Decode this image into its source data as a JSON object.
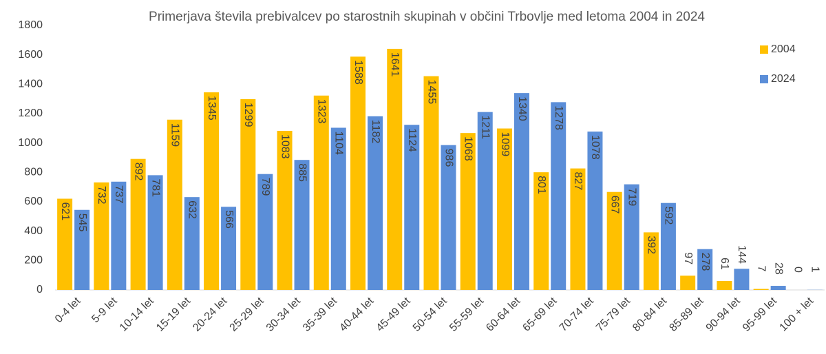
{
  "chart_data": {
    "type": "bar",
    "title": "Primerjava števila prebivalcev po starostnih skupinah v občini Trbovlje med letoma 2004 in 2024",
    "categories": [
      "0-4 let",
      "5-9 let",
      "10-14 let",
      "15-19 let",
      "20-24 let",
      "25-29 let",
      "30-34 let",
      "35-39 let",
      "40-44 let",
      "45-49 let",
      "50-54 let",
      "55-59 let",
      "60-64 let",
      "65-69 let",
      "70-74 let",
      "75-79 let",
      "80-84 let",
      "85-89 let",
      "90-94 let",
      "95-99 let",
      "100 + let"
    ],
    "series": [
      {
        "name": "2004",
        "color": "#FFC000",
        "values": [
          621,
          732,
          892,
          1159,
          1345,
          1299,
          1083,
          1323,
          1588,
          1641,
          1455,
          1068,
          1099,
          801,
          827,
          667,
          392,
          97,
          61,
          7,
          0
        ]
      },
      {
        "name": "2024",
        "color": "#5B8ED8",
        "values": [
          545,
          737,
          781,
          632,
          566,
          789,
          885,
          1104,
          1182,
          1124,
          986,
          1211,
          1340,
          1278,
          1078,
          719,
          592,
          278,
          144,
          28,
          1
        ]
      }
    ],
    "ylim": [
      0,
      1800
    ],
    "yticks": [
      0,
      200,
      400,
      600,
      800,
      1000,
      1200,
      1400,
      1600,
      1800
    ],
    "legend": "right"
  }
}
